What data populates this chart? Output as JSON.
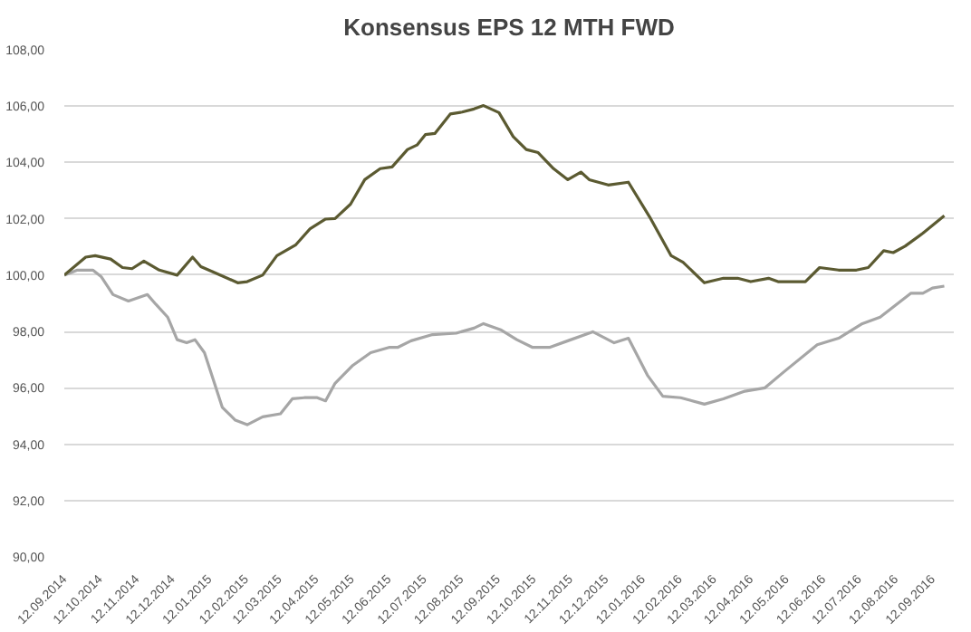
{
  "chart_data": {
    "type": "line",
    "title": "Konsensus EPS 12 MTH FWD",
    "xlim": [
      "2014-09-12",
      "2016-09-30"
    ],
    "xticks": [
      {
        "value": "2014-09-12",
        "label": "12.09.2014"
      },
      {
        "value": "2014-10-12",
        "label": "12.10.2014"
      },
      {
        "value": "2014-11-12",
        "label": "12.11.2014"
      },
      {
        "value": "2014-12-12",
        "label": "12.12.2014"
      },
      {
        "value": "2015-01-12",
        "label": "12.01.2015"
      },
      {
        "value": "2015-02-12",
        "label": "12.02.2015"
      },
      {
        "value": "2015-03-12",
        "label": "12.03.2015"
      },
      {
        "value": "2015-04-12",
        "label": "12.04.2015"
      },
      {
        "value": "2015-05-12",
        "label": "12.05.2015"
      },
      {
        "value": "2015-06-12",
        "label": "12.06.2015"
      },
      {
        "value": "2015-07-12",
        "label": "12.07.2015"
      },
      {
        "value": "2015-08-12",
        "label": "12.08.2015"
      },
      {
        "value": "2015-09-12",
        "label": "12.09.2015"
      },
      {
        "value": "2015-10-12",
        "label": "12.10.2015"
      },
      {
        "value": "2015-11-12",
        "label": "12.11.2015"
      },
      {
        "value": "2015-12-12",
        "label": "12.12.2015"
      },
      {
        "value": "2016-01-12",
        "label": "12.01.2016"
      },
      {
        "value": "2016-02-12",
        "label": "12.02.2016"
      },
      {
        "value": "2016-03-12",
        "label": "12.03.2016"
      },
      {
        "value": "2016-04-12",
        "label": "12.04.2016"
      },
      {
        "value": "2016-05-12",
        "label": "12.05.2016"
      },
      {
        "value": "2016-06-12",
        "label": "12.06.2016"
      },
      {
        "value": "2016-07-12",
        "label": "12.07.2016"
      },
      {
        "value": "2016-08-12",
        "label": "12.08.2016"
      },
      {
        "value": "2016-09-12",
        "label": "12.09.2016"
      }
    ],
    "ylim": [
      90,
      108
    ],
    "yticks": [
      {
        "value": 90,
        "label": "90,00"
      },
      {
        "value": 92,
        "label": "92,00"
      },
      {
        "value": 94,
        "label": "94,00"
      },
      {
        "value": 96,
        "label": "96,00"
      },
      {
        "value": 98,
        "label": "98,00"
      },
      {
        "value": 100,
        "label": "100,00"
      },
      {
        "value": 102,
        "label": "102,00"
      },
      {
        "value": 104,
        "label": "104,00"
      },
      {
        "value": 106,
        "label": "106,00"
      },
      {
        "value": 108,
        "label": "108,00"
      }
    ],
    "grid": "y",
    "marker": "none",
    "line_style": "solid",
    "series": [
      {
        "color": "#a6a6a6",
        "x": [
          "2014-09-12",
          "2014-09-23",
          "2014-10-06",
          "2014-10-13",
          "2014-10-23",
          "2014-11-05",
          "2014-11-21",
          "2014-11-28",
          "2014-12-08",
          "2014-12-16",
          "2014-12-24",
          "2014-12-31",
          "2015-01-08",
          "2015-01-16",
          "2015-01-23",
          "2015-02-03",
          "2015-02-13",
          "2015-02-26",
          "2015-03-13",
          "2015-03-23",
          "2015-04-02",
          "2015-04-13",
          "2015-04-20",
          "2015-04-28",
          "2015-05-13",
          "2015-05-28",
          "2015-06-13",
          "2015-06-20",
          "2015-07-01",
          "2015-07-19",
          "2015-08-08",
          "2015-08-23",
          "2015-08-31",
          "2015-09-15",
          "2015-09-28",
          "2015-10-11",
          "2015-10-26",
          "2015-11-10",
          "2015-12-01",
          "2015-12-19",
          "2015-12-31",
          "2016-01-16",
          "2016-01-29",
          "2016-02-13",
          "2016-03-04",
          "2016-03-20",
          "2016-04-07",
          "2016-04-24",
          "2016-05-10",
          "2016-06-07",
          "2016-06-25",
          "2016-07-15",
          "2016-07-30",
          "2016-08-25",
          "2016-09-04",
          "2016-09-12",
          "2016-09-22"
        ],
        "values": [
          100.0,
          100.18,
          100.18,
          99.95,
          99.31,
          99.08,
          99.31,
          98.97,
          98.51,
          97.71,
          97.6,
          97.71,
          97.25,
          96.22,
          95.31,
          94.85,
          94.69,
          94.97,
          95.08,
          95.61,
          95.65,
          95.65,
          95.54,
          96.16,
          96.8,
          97.25,
          97.44,
          97.44,
          97.67,
          97.89,
          97.94,
          98.12,
          98.28,
          98.05,
          97.71,
          97.44,
          97.44,
          97.67,
          97.99,
          97.6,
          97.76,
          96.45,
          95.7,
          95.65,
          95.42,
          95.61,
          95.88,
          96.0,
          96.57,
          97.53,
          97.76,
          98.28,
          98.51,
          99.36,
          99.36,
          99.54,
          99.61
        ]
      },
      {
        "color": "#5b5a31",
        "x": [
          "2014-09-12",
          "2014-09-30",
          "2014-10-08",
          "2014-10-21",
          "2014-10-31",
          "2014-11-08",
          "2014-11-18",
          "2014-12-01",
          "2014-12-16",
          "2014-12-29",
          "2015-01-05",
          "2015-01-16",
          "2015-02-05",
          "2015-02-13",
          "2015-02-26",
          "2015-03-10",
          "2015-03-26",
          "2015-04-07",
          "2015-04-20",
          "2015-04-28",
          "2015-05-11",
          "2015-05-23",
          "2015-06-05",
          "2015-06-15",
          "2015-06-28",
          "2015-07-06",
          "2015-07-13",
          "2015-07-21",
          "2015-08-03",
          "2015-08-13",
          "2015-08-23",
          "2015-08-31",
          "2015-09-13",
          "2015-09-25",
          "2015-10-06",
          "2015-10-16",
          "2015-10-29",
          "2015-11-10",
          "2015-11-21",
          "2015-11-28",
          "2015-12-14",
          "2015-12-31",
          "2016-01-18",
          "2016-02-05",
          "2016-02-15",
          "2016-03-04",
          "2016-03-20",
          "2016-04-01",
          "2016-04-12",
          "2016-04-27",
          "2016-05-05",
          "2016-05-28",
          "2016-06-09",
          "2016-06-25",
          "2016-07-10",
          "2016-07-20",
          "2016-08-02",
          "2016-08-10",
          "2016-08-20",
          "2016-09-04",
          "2016-09-22"
        ],
        "values": [
          100.0,
          100.64,
          100.69,
          100.57,
          100.27,
          100.23,
          100.5,
          100.18,
          100.0,
          100.64,
          100.3,
          100.1,
          99.73,
          99.77,
          100.0,
          100.69,
          101.08,
          101.65,
          101.99,
          102.01,
          102.52,
          103.39,
          103.78,
          103.84,
          104.46,
          104.62,
          104.99,
          105.03,
          105.72,
          105.79,
          105.9,
          106.02,
          105.77,
          104.92,
          104.46,
          104.35,
          103.78,
          103.39,
          103.66,
          103.39,
          103.2,
          103.3,
          102.06,
          100.69,
          100.46,
          99.73,
          99.89,
          99.89,
          99.77,
          99.89,
          99.77,
          99.77,
          100.27,
          100.18,
          100.18,
          100.27,
          100.87,
          100.8,
          101.03,
          101.49,
          102.11
        ]
      }
    ]
  }
}
